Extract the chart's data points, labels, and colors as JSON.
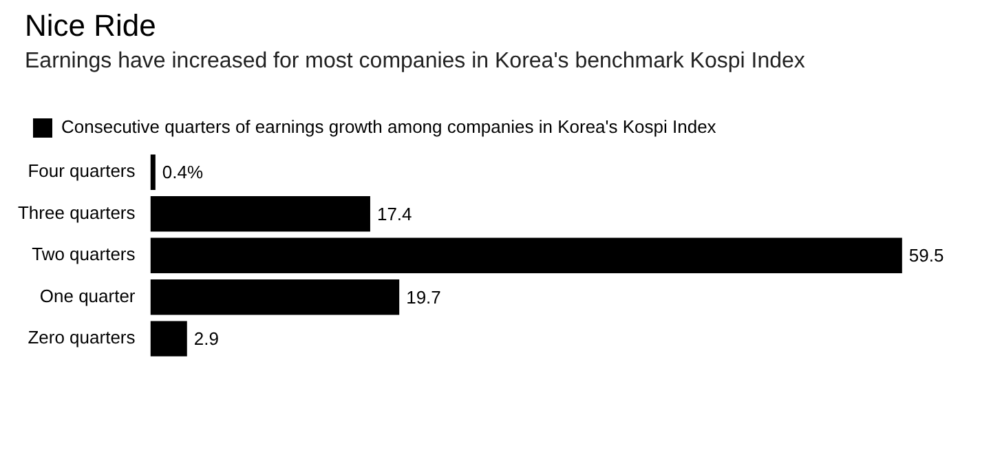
{
  "chart_data": {
    "type": "bar",
    "orientation": "horizontal",
    "title": "Nice Ride",
    "subtitle": "Earnings have increased for most companies in Korea's benchmark Kospi Index",
    "categories": [
      "Four quarters",
      "Three quarters",
      "Two quarters",
      "One quarter",
      "Zero quarters"
    ],
    "series": [
      {
        "name": "Consecutive quarters of earnings growth among companies in Korea's Kospi Index",
        "color": "#000000",
        "values": [
          0.4,
          17.4,
          59.5,
          19.7,
          2.9
        ],
        "value_labels": [
          "0.4%",
          "17.4",
          "59.5",
          "19.7",
          "2.9"
        ]
      }
    ],
    "legend": "top left"
  }
}
